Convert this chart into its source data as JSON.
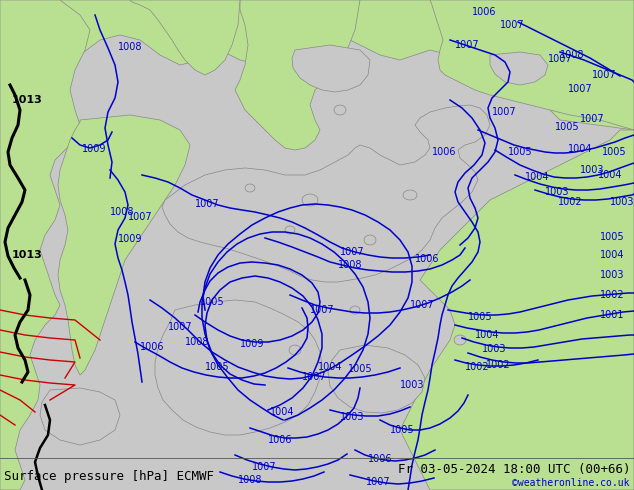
{
  "title_left": "Surface pressure [hPa] ECMWF",
  "title_right": "Fr 03-05-2024 18:00 UTC (00+66)",
  "credit": "©weatheronline.co.uk",
  "credit_color": "#0000cc",
  "bg_color": "#dcdcdc",
  "land_color": "#b8e090",
  "sea_color": "#c8c8c8",
  "contour_color_blue": "#0000cd",
  "contour_color_black": "#000000",
  "contour_color_red": "#cc0000",
  "coast_color": "#888888",
  "label_fontsize": 7,
  "title_fontsize": 9,
  "credit_fontsize": 7
}
